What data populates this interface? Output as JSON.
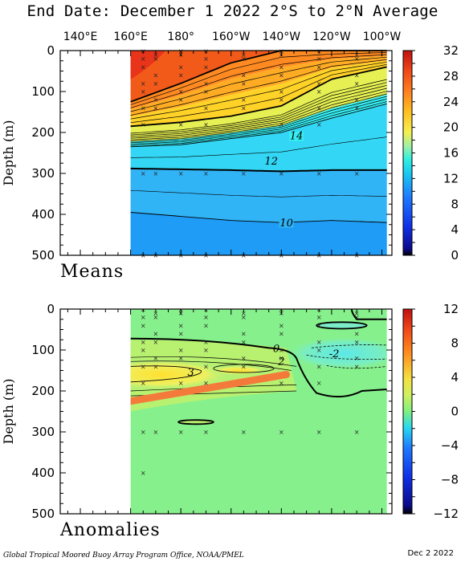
{
  "title": "End Date: December 1 2022  2°S to 2°N Average",
  "footer": {
    "credit": "Global Tropical Moored Buoy Array Program Office, NOAA/PMEL",
    "date": "Dec  2 2022"
  },
  "chart_data": [
    {
      "type": "heatmap",
      "panel_label": "Means",
      "ylabel": "Depth (m)",
      "x_tick_labels": [
        "140°E",
        "160°E",
        "180°",
        "160°W",
        "140°W",
        "120°W",
        "100°W"
      ],
      "x_ticks_lon_east": [
        140,
        160,
        180,
        200,
        220,
        240,
        260
      ],
      "xlim_lon_east": [
        132,
        264
      ],
      "data_extent_lon_east": [
        160,
        262
      ],
      "ylim": [
        500,
        0
      ],
      "y_ticks": [
        0,
        100,
        200,
        300,
        400,
        500
      ],
      "colorbar": {
        "min": 0,
        "max": 32,
        "ticks": [
          0,
          4,
          8,
          12,
          16,
          20,
          24,
          28,
          32
        ]
      },
      "contour_labels": [
        {
          "text": "14",
          "lon": 226,
          "depth": 215
        },
        {
          "text": "12",
          "lon": 216,
          "depth": 276
        },
        {
          "text": "10",
          "lon": 222,
          "depth": 427
        }
      ],
      "isotherm_depths_m": {
        "lon": [
          160,
          180,
          200,
          220,
          240,
          262
        ],
        "t28": [
          125,
          80,
          30,
          0,
          0,
          0
        ],
        "t20": [
          185,
          175,
          160,
          135,
          70,
          40
        ],
        "t14": [
          235,
          230,
          215,
          200,
          165,
          130
        ],
        "t12": [
          288,
          290,
          292,
          295,
          292,
          292
        ],
        "t10": [
          395,
          405,
          415,
          420,
          415,
          420
        ]
      },
      "sensor_depths_m": [
        1,
        10,
        20,
        40,
        60,
        80,
        100,
        120,
        140,
        180,
        300,
        500
      ]
    },
    {
      "type": "heatmap",
      "panel_label": "Anomalies",
      "ylabel": "Depth (m)",
      "x_tick_labels": [
        "140°E",
        "160°E",
        "180°",
        "160°W",
        "140°W",
        "120°W",
        "100°W"
      ],
      "ylim": [
        500,
        0
      ],
      "y_ticks": [
        0,
        100,
        200,
        300,
        400,
        500
      ],
      "colorbar": {
        "min": -12,
        "max": 12,
        "ticks": [
          -12,
          -8,
          -4,
          0,
          4,
          8,
          12
        ]
      },
      "contour_labels": [
        {
          "text": "3",
          "lon": 184,
          "depth": 155
        },
        {
          "text": "0",
          "lon": 218,
          "depth": 97
        },
        {
          "text": "2",
          "lon": 220,
          "depth": 128
        },
        {
          "text": "-2",
          "lon": 241,
          "depth": 110
        }
      ],
      "warm_core": {
        "lon_range": [
          160,
          215
        ],
        "depth_range": [
          140,
          180
        ],
        "max_anomaly": 4
      },
      "cold_core": {
        "lon_range": [
          232,
          258
        ],
        "depth_range": [
          80,
          140
        ],
        "min_anomaly": -3
      },
      "thermocline_bar": {
        "from_lon": 160,
        "from_depth": 225,
        "to_lon": 222,
        "to_depth": 160
      }
    }
  ]
}
